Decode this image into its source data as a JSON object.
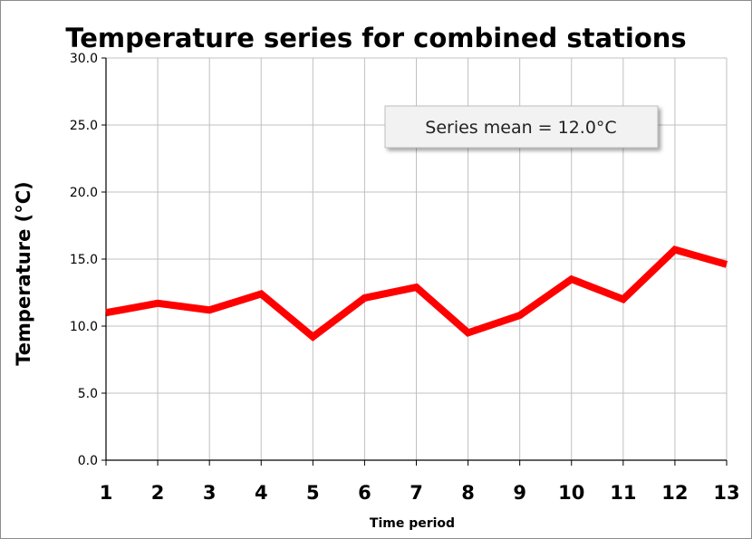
{
  "chart_data": {
    "type": "line",
    "title": "Temperature series for combined stations",
    "xlabel": "Time period",
    "ylabel": "Temperature (°C)",
    "x": [
      1,
      2,
      3,
      4,
      5,
      6,
      7,
      8,
      9,
      10,
      11,
      12,
      13
    ],
    "x_tick_labels": [
      "1",
      "2",
      "3",
      "4",
      "5",
      "6",
      "7",
      "8",
      "9",
      "10",
      "11",
      "12",
      "13"
    ],
    "y_tick_labels": [
      "0.0",
      "5.0",
      "10.0",
      "15.0",
      "20.0",
      "25.0",
      "30.0"
    ],
    "ylim": [
      0,
      30
    ],
    "xlim": [
      1,
      13
    ],
    "grid": true,
    "legend": "none",
    "series": [
      {
        "values": [
          11.0,
          11.7,
          11.2,
          12.4,
          9.2,
          12.1,
          12.9,
          9.5,
          10.8,
          13.5,
          12.0,
          15.7,
          14.6
        ],
        "color": "#ff0000"
      }
    ],
    "annotation": "Series mean = 12.0°C"
  }
}
